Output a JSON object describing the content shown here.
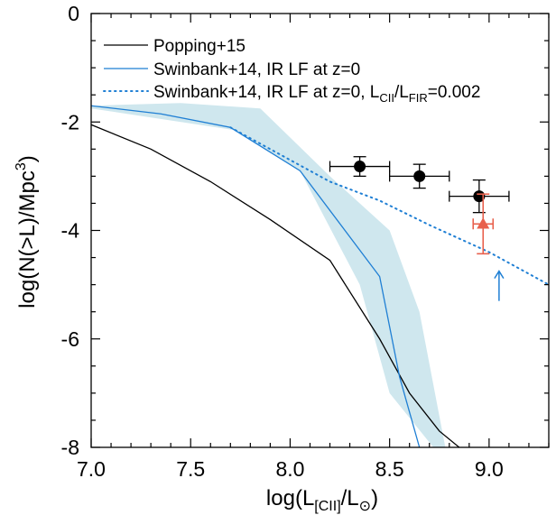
{
  "chart_data": {
    "type": "line",
    "xlabel": {
      "pre": "log(L",
      "sub": "[CII]",
      "mid": "/L",
      "post": ")",
      "symbol": "⊙"
    },
    "ylabel": {
      "pre": "log(N(>L)/Mpc",
      "sup": "3",
      "post": ")"
    },
    "xlim": [
      7.0,
      9.3
    ],
    "ylim": [
      -8,
      0
    ],
    "x_ticks": [
      "7.0",
      "7.5",
      "8.0",
      "8.5",
      "9.0"
    ],
    "y_ticks": [
      "0",
      "-2",
      "-4",
      "-6",
      "-8"
    ],
    "legend_position": "top-right",
    "legend": [
      {
        "label": "Popping+15",
        "style": "solid",
        "color": "#000000"
      },
      {
        "label": "Swinbank+14, IR LF at z=0",
        "style": "solid",
        "color": "#1f7fd4"
      },
      {
        "label": "Swinbank+14, IR LF at z=0, L",
        "sub1": "CII",
        "mid": "/L",
        "sub2": "FIR",
        "post": "=0.002",
        "style": "dotted",
        "color": "#1f7fd4"
      }
    ],
    "series": [
      {
        "name": "Popping+15",
        "color": "#000000",
        "style": "solid",
        "x": [
          7.0,
          7.3,
          7.6,
          7.9,
          8.2,
          8.45,
          8.6,
          8.75,
          8.85
        ],
        "y": [
          -2.05,
          -2.5,
          -3.1,
          -3.8,
          -4.55,
          -6.0,
          -7.0,
          -7.7,
          -8.0
        ]
      },
      {
        "name": "Swinbank+14, IR LF at z=0",
        "color": "#1f7fd4",
        "style": "solid",
        "x": [
          7.0,
          7.35,
          7.7,
          8.05,
          8.45,
          8.55,
          8.65
        ],
        "y": [
          -1.7,
          -1.85,
          -2.1,
          -2.9,
          -4.85,
          -6.7,
          -8.0
        ]
      },
      {
        "name": "Swinbank+14, IR LF at z=0, LCII/LFIR=0.002",
        "color": "#1f7fd4",
        "style": "dotted",
        "x": [
          7.7,
          7.95,
          8.2,
          8.45,
          8.7,
          9.0,
          9.3
        ],
        "y": [
          -2.1,
          -2.6,
          -3.1,
          -3.45,
          -3.9,
          -4.4,
          -5.0
        ]
      }
    ],
    "band": {
      "color": "#cfe7ee",
      "x_upper": [
        7.0,
        7.45,
        7.85,
        8.2,
        8.5,
        8.65,
        8.78
      ],
      "y_upper": [
        -1.7,
        -1.65,
        -1.75,
        -3.0,
        -4.0,
        -5.5,
        -8.0
      ],
      "x_lower": [
        8.72,
        8.5,
        8.35,
        8.05,
        7.72,
        7.0
      ],
      "y_lower": [
        -8.0,
        -7.0,
        -5.0,
        -2.9,
        -2.15,
        -1.75
      ]
    },
    "points": [
      {
        "x": 8.35,
        "y": -2.82,
        "xerr": 0.15,
        "yerr_lo": 0.18,
        "yerr_hi": 0.18,
        "color": "#000000",
        "marker": "circle"
      },
      {
        "x": 8.65,
        "y": -3.0,
        "xerr": 0.15,
        "yerr_lo": 0.22,
        "yerr_hi": 0.22,
        "color": "#000000",
        "marker": "circle"
      },
      {
        "x": 8.95,
        "y": -3.37,
        "xerr": 0.15,
        "yerr_lo": 0.3,
        "yerr_hi": 0.3,
        "color": "#000000",
        "marker": "circle"
      },
      {
        "x": 8.97,
        "y": -3.88,
        "xerr": 0.05,
        "yerr_lo": 0.55,
        "yerr_hi": 0.55,
        "color": "#e8604c",
        "marker": "triangle"
      }
    ],
    "arrow": {
      "x": 9.05,
      "y_from": -5.3,
      "y_to": -4.75,
      "color": "#1f7fd4"
    }
  }
}
